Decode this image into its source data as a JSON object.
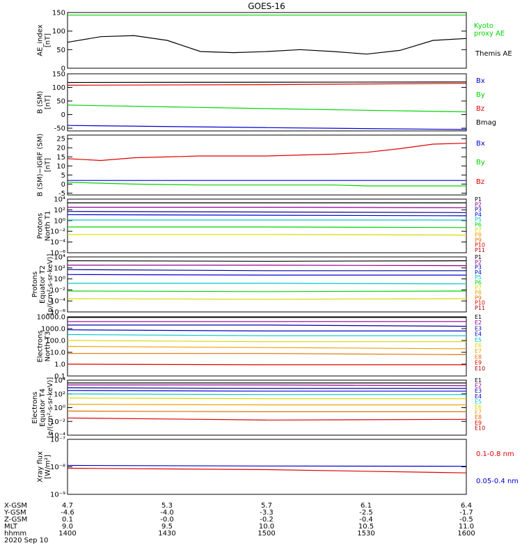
{
  "title": "GOES-16",
  "colors": {
    "black": "#000000",
    "red": "#e00000",
    "green": "#00d400",
    "blue": "#0000d0",
    "navy": "#0000a0",
    "cyan": "#00c8c8",
    "teal": "#00a0a0",
    "yellow": "#d8d800",
    "orange": "#f0a000",
    "darkorange": "#e07000",
    "darkred": "#b00000",
    "purple": "#900090"
  },
  "x_axis": {
    "rows": [
      {
        "label": "X-GSM",
        "values": [
          "4.7",
          "5.3",
          "5.7",
          "6.1",
          "6.4"
        ]
      },
      {
        "label": "Y-GSM",
        "values": [
          "-4.6",
          "-4.0",
          "-3.3",
          "-2.5",
          "-1.7"
        ]
      },
      {
        "label": "Z-GSM",
        "values": [
          "0.1",
          "-0.0",
          "-0.2",
          "-0.4",
          "-0.5"
        ]
      },
      {
        "label": "MLT",
        "values": [
          "9.0",
          "9.5",
          "10.0",
          "10.5",
          "11.0"
        ]
      },
      {
        "label": "hhmm",
        "values": [
          "1400",
          "1430",
          "1500",
          "1530",
          "1600"
        ]
      }
    ],
    "date": "2020 Sep 10"
  },
  "chart_data": [
    {
      "type": "line",
      "ylabel_lines": [
        "AE_index",
        "[nT]"
      ],
      "y_scale": "linear",
      "ylim": [
        0,
        150
      ],
      "yticks": [
        0,
        50,
        100,
        150
      ],
      "ytick_labels": [
        "0",
        "50",
        "100",
        "150"
      ],
      "x": [
        "14:00",
        "14:10",
        "14:20",
        "14:30",
        "14:40",
        "14:50",
        "15:00",
        "15:10",
        "15:20",
        "15:30",
        "15:40",
        "15:50",
        "16:00"
      ],
      "series": [
        {
          "name": "Kyoto proxy AE",
          "color": "green",
          "values": [
            143,
            143,
            143,
            143,
            143,
            143,
            143,
            143,
            143,
            143,
            143,
            143,
            143
          ]
        },
        {
          "name": "Themis AE",
          "color": "black",
          "values": [
            70,
            85,
            88,
            75,
            45,
            42,
            45,
            50,
            45,
            38,
            48,
            75,
            80
          ]
        }
      ],
      "legend": [
        {
          "text": "Kyoto",
          "color": "green"
        },
        {
          "text": "proxy AE",
          "color": "green"
        },
        {
          "text": "Themis AE",
          "color": "black"
        }
      ]
    },
    {
      "type": "line",
      "ylabel_lines": [
        "B (SM)",
        "[nT]"
      ],
      "y_scale": "linear",
      "ylim": [
        -60,
        150
      ],
      "yticks": [
        -50,
        0,
        50,
        100,
        150
      ],
      "ytick_labels": [
        "-50",
        "0",
        "50",
        "100",
        "150"
      ],
      "x": [
        "14:00",
        "15:00",
        "16:00"
      ],
      "series": [
        {
          "name": "Bmag",
          "color": "black",
          "values": [
            118,
            119,
            120
          ]
        },
        {
          "name": "Bz",
          "color": "red",
          "values": [
            108,
            110,
            115
          ]
        },
        {
          "name": "By",
          "color": "green",
          "values": [
            35,
            22,
            10
          ]
        },
        {
          "name": "Bx",
          "color": "blue",
          "values": [
            -40,
            -48,
            -55
          ]
        }
      ],
      "legend": [
        {
          "text": "Bx",
          "color": "blue"
        },
        {
          "text": "By",
          "color": "green"
        },
        {
          "text": "Bz",
          "color": "red"
        },
        {
          "text": "Bmag",
          "color": "black"
        }
      ]
    },
    {
      "type": "line",
      "ylabel_lines": [
        "B (SM)−IGRF (SM)",
        "[nT]"
      ],
      "y_scale": "linear",
      "ylim": [
        -6,
        27
      ],
      "yticks": [
        -5,
        0,
        5,
        10,
        15,
        20,
        25
      ],
      "ytick_labels": [
        "-5",
        "0",
        "5",
        "10",
        "15",
        "20",
        "25"
      ],
      "x": [
        "14:00",
        "14:10",
        "14:20",
        "14:40",
        "15:00",
        "15:20",
        "15:30",
        "15:40",
        "15:50",
        "16:00"
      ],
      "series": [
        {
          "name": "Bz",
          "color": "red",
          "values": [
            14,
            13,
            14.5,
            15.5,
            15.5,
            16.5,
            17.5,
            19.5,
            22,
            22.5
          ]
        },
        {
          "name": "Bx",
          "color": "blue",
          "values": [
            2,
            2,
            2,
            2,
            2,
            2,
            2,
            2,
            2,
            2
          ]
        },
        {
          "name": "By",
          "color": "green",
          "values": [
            1,
            0.5,
            0,
            -0.5,
            -0.5,
            -0.5,
            -1,
            -1,
            -1,
            -1
          ]
        }
      ],
      "legend": [
        {
          "text": "Bx",
          "color": "blue"
        },
        {
          "text": "By",
          "color": "green"
        },
        {
          "text": "Bz",
          "color": "red"
        }
      ]
    },
    {
      "type": "line",
      "ylabel_lines": [
        "Protons",
        "North T1"
      ],
      "y_scale": "log",
      "ylim": [
        -6,
        4
      ],
      "yticks": [
        -6,
        -4,
        -2,
        0,
        2,
        4
      ],
      "ytick_labels": [
        "10⁻⁶",
        "10⁻⁴",
        "10⁻²",
        "10⁰",
        "10²",
        "10⁴"
      ],
      "x": [
        "14:00",
        "15:00",
        "16:00"
      ],
      "series": [
        {
          "name": "P1",
          "color": "black",
          "values": [
            3.3,
            3.3,
            3.3
          ]
        },
        {
          "name": "P2",
          "color": "purple",
          "values": [
            2.5,
            2.5,
            2.4
          ]
        },
        {
          "name": "P3",
          "color": "navy",
          "values": [
            1.7,
            1.6,
            1.5
          ]
        },
        {
          "name": "P4",
          "color": "blue",
          "values": [
            1.1,
            1.0,
            0.9
          ]
        },
        {
          "name": "P5",
          "color": "cyan",
          "values": [
            0.1,
            0.1,
            0.1
          ]
        },
        {
          "name": "P6",
          "color": "green",
          "values": [
            -1.2,
            -1.2,
            -1.3
          ]
        },
        {
          "name": "P7",
          "color": "yellow",
          "values": [
            -2.6,
            -2.6,
            -2.7
          ]
        }
      ],
      "legend": [
        {
          "text": "P1",
          "color": "black"
        },
        {
          "text": "P2",
          "color": "purple"
        },
        {
          "text": "P3",
          "color": "navy"
        },
        {
          "text": "P4",
          "color": "blue"
        },
        {
          "text": "P5",
          "color": "cyan"
        },
        {
          "text": "P6",
          "color": "green"
        },
        {
          "text": "P7",
          "color": "yellow"
        },
        {
          "text": "P8",
          "color": "orange"
        },
        {
          "text": "P9",
          "color": "darkorange"
        },
        {
          "text": "P10",
          "color": "red"
        },
        {
          "text": "P11",
          "color": "darkred"
        }
      ]
    },
    {
      "type": "line",
      "ylabel_lines": [
        "Protons",
        "Equator T2",
        "[p/(cm²-s-sr-keV)]"
      ],
      "y_scale": "log",
      "ylim": [
        -6,
        4
      ],
      "yticks": [
        -6,
        -4,
        -2,
        0,
        2,
        4
      ],
      "ytick_labels": [
        "10⁻⁶",
        "10⁻⁴",
        "10⁻²",
        "10⁰",
        "10²",
        "10⁴"
      ],
      "x": [
        "14:00",
        "15:00",
        "16:00"
      ],
      "series": [
        {
          "name": "P1",
          "color": "black",
          "values": [
            3.3,
            3.2,
            3.3
          ]
        },
        {
          "name": "P2",
          "color": "purple",
          "values": [
            2.5,
            2.5,
            2.4
          ]
        },
        {
          "name": "P3",
          "color": "navy",
          "values": [
            1.7,
            1.5,
            1.5
          ]
        },
        {
          "name": "P4",
          "color": "blue",
          "values": [
            0.8,
            0.7,
            0.7
          ]
        },
        {
          "name": "P5",
          "color": "cyan",
          "values": [
            -0.8,
            -0.8,
            -0.9
          ]
        },
        {
          "name": "P6",
          "color": "green",
          "values": [
            -2.2,
            -2.3,
            -2.2
          ]
        },
        {
          "name": "P7",
          "color": "yellow",
          "values": [
            -3.6,
            -3.7,
            -3.6
          ]
        }
      ],
      "legend": [
        {
          "text": "P1",
          "color": "black"
        },
        {
          "text": "P2",
          "color": "purple"
        },
        {
          "text": "P3",
          "color": "navy"
        },
        {
          "text": "P4",
          "color": "blue"
        },
        {
          "text": "P5",
          "color": "cyan"
        },
        {
          "text": "P6",
          "color": "green"
        },
        {
          "text": "P7",
          "color": "yellow"
        },
        {
          "text": "P8",
          "color": "orange"
        },
        {
          "text": "P9",
          "color": "darkorange"
        },
        {
          "text": "P10",
          "color": "red"
        },
        {
          "text": "P11",
          "color": "darkred"
        }
      ]
    },
    {
      "type": "line",
      "ylabel_lines": [
        "Electrons",
        "North T3"
      ],
      "y_scale": "log",
      "ylim": [
        -1,
        4
      ],
      "yticks": [
        -1,
        0,
        1,
        2,
        3,
        4
      ],
      "ytick_labels": [
        "0.1",
        "1.0",
        "10.0",
        "100.0",
        "1000.0",
        "10000.0"
      ],
      "x": [
        "14:00",
        "15:00",
        "16:00"
      ],
      "series": [
        {
          "name": "E1",
          "color": "black",
          "values": [
            3.95,
            3.95,
            3.95
          ]
        },
        {
          "name": "E2",
          "color": "purple",
          "values": [
            3.6,
            3.6,
            3.6
          ]
        },
        {
          "name": "E3",
          "color": "navy",
          "values": [
            3.3,
            3.3,
            3.2
          ]
        },
        {
          "name": "E4",
          "color": "blue",
          "values": [
            2.9,
            2.8,
            2.8
          ]
        },
        {
          "name": "E5",
          "color": "cyan",
          "values": [
            2.5,
            2.4,
            2.4
          ]
        },
        {
          "name": "E6",
          "color": "yellow",
          "values": [
            2.0,
            1.9,
            1.9
          ]
        },
        {
          "name": "E7",
          "color": "orange",
          "values": [
            1.5,
            1.4,
            1.3
          ]
        },
        {
          "name": "E8",
          "color": "darkorange",
          "values": [
            0.9,
            0.9,
            0.8
          ]
        },
        {
          "name": "E9",
          "color": "red",
          "values": [
            0.0,
            -0.05,
            -0.05
          ]
        }
      ],
      "legend": [
        {
          "text": "E1",
          "color": "black"
        },
        {
          "text": "E2",
          "color": "purple"
        },
        {
          "text": "E3",
          "color": "navy"
        },
        {
          "text": "E4",
          "color": "blue"
        },
        {
          "text": "E5",
          "color": "cyan"
        },
        {
          "text": "E6",
          "color": "yellow"
        },
        {
          "text": "E7",
          "color": "orange"
        },
        {
          "text": "E8",
          "color": "darkorange"
        },
        {
          "text": "E9",
          "color": "red"
        },
        {
          "text": "E10",
          "color": "darkred"
        }
      ]
    },
    {
      "type": "line",
      "ylabel_lines": [
        "Electrons",
        "Equator T4",
        "[e/(cm²-s-sr-keV)]"
      ],
      "y_scale": "log",
      "ylim": [
        -4,
        4
      ],
      "yticks": [
        -4,
        -2,
        0,
        2,
        4
      ],
      "ytick_labels": [
        "10⁻⁴",
        "10⁻²",
        "10⁰",
        "10²",
        "10⁴"
      ],
      "x": [
        "14:00",
        "15:00",
        "16:00"
      ],
      "series": [
        {
          "name": "E1",
          "color": "black",
          "values": [
            3.6,
            3.6,
            3.6
          ]
        },
        {
          "name": "E2",
          "color": "purple",
          "values": [
            3.3,
            3.3,
            3.2
          ]
        },
        {
          "name": "E3",
          "color": "navy",
          "values": [
            2.9,
            2.8,
            2.8
          ]
        },
        {
          "name": "E4",
          "color": "blue",
          "values": [
            2.5,
            2.4,
            2.4
          ]
        },
        {
          "name": "E5",
          "color": "cyan",
          "values": [
            2.0,
            1.9,
            1.9
          ]
        },
        {
          "name": "E6",
          "color": "yellow",
          "values": [
            1.4,
            1.3,
            1.3
          ]
        },
        {
          "name": "E7",
          "color": "orange",
          "values": [
            0.5,
            0.4,
            0.4
          ]
        },
        {
          "name": "E8",
          "color": "darkorange",
          "values": [
            -0.5,
            -0.6,
            -0.6
          ]
        },
        {
          "name": "E9",
          "color": "red",
          "values": [
            -1.5,
            -1.8,
            -1.7
          ]
        }
      ],
      "legend": [
        {
          "text": "E1",
          "color": "black"
        },
        {
          "text": "E2",
          "color": "purple"
        },
        {
          "text": "E3",
          "color": "navy"
        },
        {
          "text": "E4",
          "color": "blue"
        },
        {
          "text": "E5",
          "color": "cyan"
        },
        {
          "text": "E6",
          "color": "yellow"
        },
        {
          "text": "E7",
          "color": "orange"
        },
        {
          "text": "E8",
          "color": "darkorange"
        },
        {
          "text": "E9",
          "color": "red"
        },
        {
          "text": "E10",
          "color": "darkred"
        }
      ]
    },
    {
      "type": "line",
      "ylabel_lines": [
        "Xray flux",
        "[W/m²]"
      ],
      "y_scale": "log",
      "ylim": [
        -9,
        -7
      ],
      "yticks": [
        -9,
        -8,
        -7
      ],
      "ytick_labels": [
        "10⁻⁹",
        "10⁻⁸",
        "10⁻⁷"
      ],
      "x": [
        "14:00",
        "15:00",
        "16:00"
      ],
      "series": [
        {
          "name": "0.05-0.4 nm",
          "color": "blue",
          "values": [
            -7.95,
            -7.97,
            -7.98
          ]
        },
        {
          "name": "0.1-0.8 nm",
          "color": "red",
          "values": [
            -8.05,
            -8.1,
            -8.22
          ]
        }
      ],
      "legend": [
        {
          "text": "0.1-0.8 nm",
          "color": "red"
        },
        {
          "text": "0.05-0.4 nm",
          "color": "blue"
        }
      ]
    }
  ]
}
